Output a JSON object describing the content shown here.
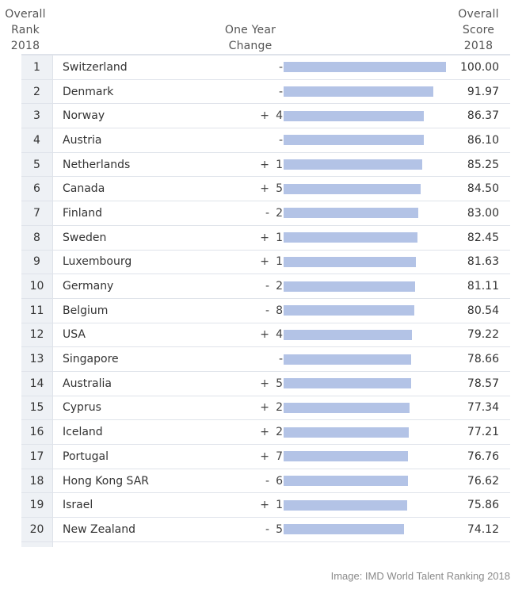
{
  "headers": {
    "rank": "Overall\nRank\n2018",
    "change": "One Year\nChange",
    "score": "Overall\nScore\n2018"
  },
  "caption": "Image: IMD World Talent Ranking 2018",
  "colors": {
    "bar": "#b3c3e6",
    "rank_bg": "#eef1f5",
    "rule": "#dfe3ea"
  },
  "chart_data": {
    "type": "bar",
    "orientation": "horizontal",
    "xlim": [
      0,
      100
    ],
    "categories": [
      "Switzerland",
      "Denmark",
      "Norway",
      "Austria",
      "Netherlands",
      "Canada",
      "Finland",
      "Sweden",
      "Luxembourg",
      "Germany",
      "Belgium",
      "USA",
      "Singapore",
      "Australia",
      "Cyprus",
      "Iceland",
      "Portugal",
      "Hong Kong SAR",
      "Israel",
      "New Zealand"
    ],
    "values": [
      100.0,
      91.97,
      86.37,
      86.1,
      85.25,
      84.5,
      83.0,
      82.45,
      81.63,
      81.11,
      80.54,
      79.22,
      78.66,
      78.57,
      77.34,
      77.21,
      76.76,
      76.62,
      75.86,
      74.12
    ],
    "rows": [
      {
        "rank": "1",
        "country": "Switzerland",
        "change_sign": "",
        "change_num": "",
        "score": "100.00"
      },
      {
        "rank": "2",
        "country": "Denmark",
        "change_sign": "",
        "change_num": "",
        "score": "91.97"
      },
      {
        "rank": "3",
        "country": "Norway",
        "change_sign": "+",
        "change_num": "4",
        "score": "86.37"
      },
      {
        "rank": "4",
        "country": "Austria",
        "change_sign": "",
        "change_num": "",
        "score": "86.10"
      },
      {
        "rank": "5",
        "country": "Netherlands",
        "change_sign": "+",
        "change_num": "1",
        "score": "85.25"
      },
      {
        "rank": "6",
        "country": "Canada",
        "change_sign": "+",
        "change_num": "5",
        "score": "84.50"
      },
      {
        "rank": "7",
        "country": "Finland",
        "change_sign": "-",
        "change_num": "2",
        "score": "83.00"
      },
      {
        "rank": "8",
        "country": "Sweden",
        "change_sign": "+",
        "change_num": "1",
        "score": "82.45"
      },
      {
        "rank": "9",
        "country": "Luxembourg",
        "change_sign": "+",
        "change_num": "1",
        "score": "81.63"
      },
      {
        "rank": "10",
        "country": "Germany",
        "change_sign": "-",
        "change_num": "2",
        "score": "81.11"
      },
      {
        "rank": "11",
        "country": "Belgium",
        "change_sign": "-",
        "change_num": "8",
        "score": "80.54"
      },
      {
        "rank": "12",
        "country": "USA",
        "change_sign": "+",
        "change_num": "4",
        "score": "79.22"
      },
      {
        "rank": "13",
        "country": "Singapore",
        "change_sign": "",
        "change_num": "",
        "score": "78.66"
      },
      {
        "rank": "14",
        "country": "Australia",
        "change_sign": "+",
        "change_num": "5",
        "score": "78.57"
      },
      {
        "rank": "15",
        "country": "Cyprus",
        "change_sign": "+",
        "change_num": "2",
        "score": "77.34"
      },
      {
        "rank": "16",
        "country": "Iceland",
        "change_sign": "+",
        "change_num": "2",
        "score": "77.21"
      },
      {
        "rank": "17",
        "country": "Portugal",
        "change_sign": "+",
        "change_num": "7",
        "score": "76.76"
      },
      {
        "rank": "18",
        "country": "Hong Kong SAR",
        "change_sign": "-",
        "change_num": "6",
        "score": "76.62"
      },
      {
        "rank": "19",
        "country": "Israel",
        "change_sign": "+",
        "change_num": "1",
        "score": "75.86"
      },
      {
        "rank": "20",
        "country": "New Zealand",
        "change_sign": "-",
        "change_num": "5",
        "score": "74.12"
      }
    ],
    "no_change_label": "-"
  }
}
